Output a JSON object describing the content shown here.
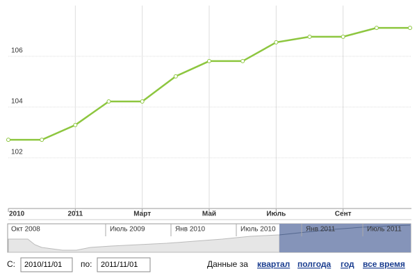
{
  "chart_data": {
    "type": "line",
    "categories": [
      "2010",
      null,
      "2011",
      null,
      "Март",
      null,
      "Май",
      null,
      "Июль",
      null,
      "Сент",
      null,
      null
    ],
    "series": [
      {
        "color": "#8dc63f",
        "values": [
          102.71,
          102.71,
          103.29,
          104.22,
          104.22,
          105.21,
          105.81,
          105.81,
          106.55,
          106.77,
          106.77,
          107.12,
          107.12
        ]
      }
    ],
    "ylim": [
      100,
      108
    ],
    "yticks": [
      102,
      104,
      106
    ],
    "grid": true
  },
  "navigator": {
    "labels": [
      "Окт 2008",
      "Июль 2009",
      "Янв 2010",
      "Июль 2010",
      "Янв 2011",
      "Июль 2011"
    ]
  },
  "controls": {
    "from_label": "С:",
    "from_value": "2010/11/01",
    "to_label": "по:",
    "to_value": "2011/11/01",
    "range_label": "Данные за",
    "ranges": [
      "квартал",
      "полгода",
      "год",
      "все время"
    ]
  }
}
